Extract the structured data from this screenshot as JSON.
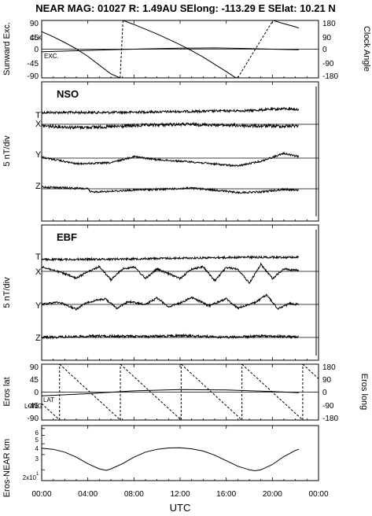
{
  "header": {
    "title": "NEAR MAG: 01027  R: 1.49AU  SElong: -113.29 E  SElat:   10.21 N"
  },
  "colors": {
    "foreground": "#000000",
    "background": "#ffffff"
  },
  "chart_data": [
    {
      "id": "sunward-clock",
      "type": "line",
      "ylabel_left": "Sunward Exc.",
      "ylabel_right": "Clock Angle",
      "ylim_left": [
        -90,
        90
      ],
      "ylim_right": [
        -180,
        180
      ],
      "left_ticks": [
        "90",
        "45",
        "0",
        "-45",
        "-90"
      ],
      "right_ticks": [
        "180",
        "90",
        "0",
        "-90",
        "-180"
      ],
      "annotations": [
        "CLK",
        "EXC."
      ],
      "series": [
        {
          "name": "CLK",
          "axis": "right",
          "points": [
            [
              0,
              110
            ],
            [
              1,
              78
            ],
            [
              2,
              42
            ],
            [
              3,
              2
            ],
            [
              4,
              -45
            ],
            [
              5,
              -100
            ],
            [
              6,
              -155
            ],
            [
              6.8,
              -180
            ],
            [
              7.05,
              180
            ],
            [
              8,
              155
            ],
            [
              9,
              125
            ],
            [
              10,
              95
            ],
            [
              11,
              62
            ],
            [
              12,
              28
            ],
            [
              13,
              -10
            ],
            [
              14,
              -50
            ],
            [
              15,
              -95
            ],
            [
              16,
              -140
            ],
            [
              16.8,
              -178
            ],
            [
              17,
              -180
            ],
            [
              20.05,
              180
            ],
            [
              21,
              160
            ],
            [
              22,
              140
            ],
            [
              22.3,
              132
            ]
          ]
        },
        {
          "name": "EXC.",
          "axis": "left",
          "points": [
            [
              0,
              -8
            ],
            [
              3,
              -5
            ],
            [
              6,
              -2
            ],
            [
              9,
              1
            ],
            [
              12,
              3
            ],
            [
              15,
              4
            ],
            [
              18,
              2
            ],
            [
              21,
              -1
            ],
            [
              22.3,
              -2
            ]
          ]
        }
      ]
    },
    {
      "id": "nso",
      "type": "line",
      "panel_label": "NSO",
      "ylabel": "5 nT/div",
      "series": [
        {
          "name": "T",
          "points": [
            [
              0,
              2
            ],
            [
              6,
              2
            ],
            [
              12,
              2.3
            ],
            [
              18,
              2.6
            ],
            [
              21,
              3.2
            ],
            [
              22.3,
              3
            ]
          ]
        },
        {
          "name": "X",
          "points": [
            [
              0,
              -0.5
            ],
            [
              3,
              -1
            ],
            [
              6,
              -0.8
            ],
            [
              9,
              -0.3
            ],
            [
              12,
              0
            ],
            [
              15,
              -0.2
            ],
            [
              18,
              -0.5
            ],
            [
              21,
              -0.6
            ],
            [
              22.3,
              -0.4
            ]
          ]
        },
        {
          "name": "Y",
          "points": [
            [
              0,
              0.3
            ],
            [
              3,
              -1.8
            ],
            [
              6,
              -1.5
            ],
            [
              8,
              0.5
            ],
            [
              10,
              -0.5
            ],
            [
              13,
              -1.2
            ],
            [
              16,
              -2.2
            ],
            [
              17,
              -2.5
            ],
            [
              19,
              -1
            ],
            [
              21,
              1.5
            ],
            [
              22.3,
              0.4
            ]
          ]
        },
        {
          "name": "Z",
          "points": [
            [
              0,
              0.6
            ],
            [
              4,
              0
            ],
            [
              4.2,
              -1
            ],
            [
              6,
              -0.8
            ],
            [
              8,
              -0.4
            ],
            [
              10,
              -0.2
            ],
            [
              13,
              0.2
            ],
            [
              15,
              -0.4
            ],
            [
              17,
              -1.2
            ],
            [
              19,
              -1
            ],
            [
              21,
              -0.2
            ],
            [
              22.3,
              -0.4
            ]
          ]
        }
      ]
    },
    {
      "id": "ebf",
      "type": "line",
      "panel_label": "EBF",
      "ylabel": "5 nT/div",
      "series": [
        {
          "name": "T",
          "points": [
            [
              0,
              0.5
            ],
            [
              6,
              0.6
            ],
            [
              12,
              0.8
            ],
            [
              18,
              1
            ],
            [
              22.3,
              1
            ]
          ]
        },
        {
          "name": "X",
          "points": [
            [
              0,
              1
            ],
            [
              2,
              -0.5
            ],
            [
              3,
              -1.5
            ],
            [
              4,
              0
            ],
            [
              5,
              1
            ],
            [
              6,
              -1.8
            ],
            [
              7,
              0.5
            ],
            [
              8,
              1
            ],
            [
              9,
              -1.5
            ],
            [
              10,
              0.5
            ],
            [
              12,
              -1.5
            ],
            [
              13,
              0.5
            ],
            [
              14,
              1
            ],
            [
              15,
              -2
            ],
            [
              16,
              0.8
            ],
            [
              17,
              0.5
            ],
            [
              18,
              -2.5
            ],
            [
              19,
              1.5
            ],
            [
              20,
              -1.5
            ],
            [
              21,
              0.5
            ],
            [
              22.3,
              0.2
            ]
          ]
        },
        {
          "name": "Y",
          "points": [
            [
              0,
              0
            ],
            [
              1.5,
              0.5
            ],
            [
              3,
              -1
            ],
            [
              4,
              0.5
            ],
            [
              5.5,
              1.2
            ],
            [
              6.5,
              -0.8
            ],
            [
              7.5,
              0.6
            ],
            [
              9,
              0
            ],
            [
              10,
              1.4
            ],
            [
              11,
              -0.5
            ],
            [
              12,
              0.3
            ],
            [
              13,
              1.5
            ],
            [
              14.5,
              -0.3
            ],
            [
              16,
              1.2
            ],
            [
              17,
              -0.8
            ],
            [
              18.5,
              0.4
            ],
            [
              19.5,
              2
            ],
            [
              20.5,
              -1
            ],
            [
              21.5,
              0.2
            ],
            [
              22.3,
              0
            ]
          ]
        },
        {
          "name": "Z",
          "points": [
            [
              0,
              0
            ],
            [
              5,
              0.3
            ],
            [
              9,
              0.2
            ],
            [
              12,
              0.4
            ],
            [
              16,
              0
            ],
            [
              19,
              0.3
            ],
            [
              22.3,
              0.1
            ]
          ]
        }
      ]
    },
    {
      "id": "eros-lat-long",
      "type": "line",
      "ylabel_left": "Eros lat",
      "ylabel_right": "Eros long",
      "ylim_left": [
        -90,
        90
      ],
      "ylim_right": [
        -180,
        180
      ],
      "left_ticks": [
        "90",
        "45",
        "0",
        "-45",
        "-90"
      ],
      "right_ticks": [
        "180",
        "90",
        "0",
        "-90",
        "-180"
      ],
      "annotations": [
        "LONG",
        "LAT"
      ],
      "series": [
        {
          "name": "LONG",
          "axis": "right",
          "sawtooth_period_hours": 5.27,
          "first_wrap_hour": 1.55,
          "range": [
            -180,
            180
          ]
        },
        {
          "name": "LAT",
          "axis": "left",
          "points": [
            [
              0,
              -12
            ],
            [
              4,
              -5
            ],
            [
              8,
              4
            ],
            [
              12,
              8
            ],
            [
              16,
              7
            ],
            [
              20,
              2
            ],
            [
              22.3,
              -2
            ]
          ]
        }
      ]
    },
    {
      "id": "eros-near-km",
      "type": "line",
      "ylabel": "Eros-NEAR km",
      "yscale": "log",
      "ylim": [
        1.5,
        6.5
      ],
      "tick_labels": [
        "6",
        "5",
        "4",
        "3",
        "2x10"
      ],
      "tick_values": [
        6,
        5,
        4,
        3,
        2
      ],
      "tick_exponent": "1",
      "series": [
        {
          "name": "range",
          "points": [
            [
              0,
              3.55
            ],
            [
              1,
              3.45
            ],
            [
              2,
              3.2
            ],
            [
              3,
              2.8
            ],
            [
              4,
              2.35
            ],
            [
              5,
              2.05
            ],
            [
              5.6,
              1.97
            ],
            [
              6,
              2.05
            ],
            [
              7,
              2.35
            ],
            [
              8,
              2.8
            ],
            [
              9,
              3.2
            ],
            [
              10,
              3.45
            ],
            [
              11,
              3.58
            ],
            [
              12,
              3.6
            ],
            [
              13,
              3.5
            ],
            [
              14,
              3.3
            ],
            [
              15,
              2.95
            ],
            [
              16,
              2.55
            ],
            [
              17,
              2.2
            ],
            [
              18,
              2.0
            ],
            [
              18.5,
              1.95
            ],
            [
              19,
              2.0
            ],
            [
              20,
              2.3
            ],
            [
              21,
              2.85
            ],
            [
              22,
              3.35
            ],
            [
              22.3,
              3.45
            ]
          ]
        }
      ]
    }
  ],
  "x_axis": {
    "label": "UTC",
    "range": [
      0,
      24
    ],
    "ticks": [
      0,
      4,
      8,
      12,
      16,
      20,
      24
    ],
    "tick_labels": [
      "00:00",
      "04:00",
      "08:00",
      "12:00",
      "16:00",
      "20:00",
      "00:00"
    ]
  }
}
